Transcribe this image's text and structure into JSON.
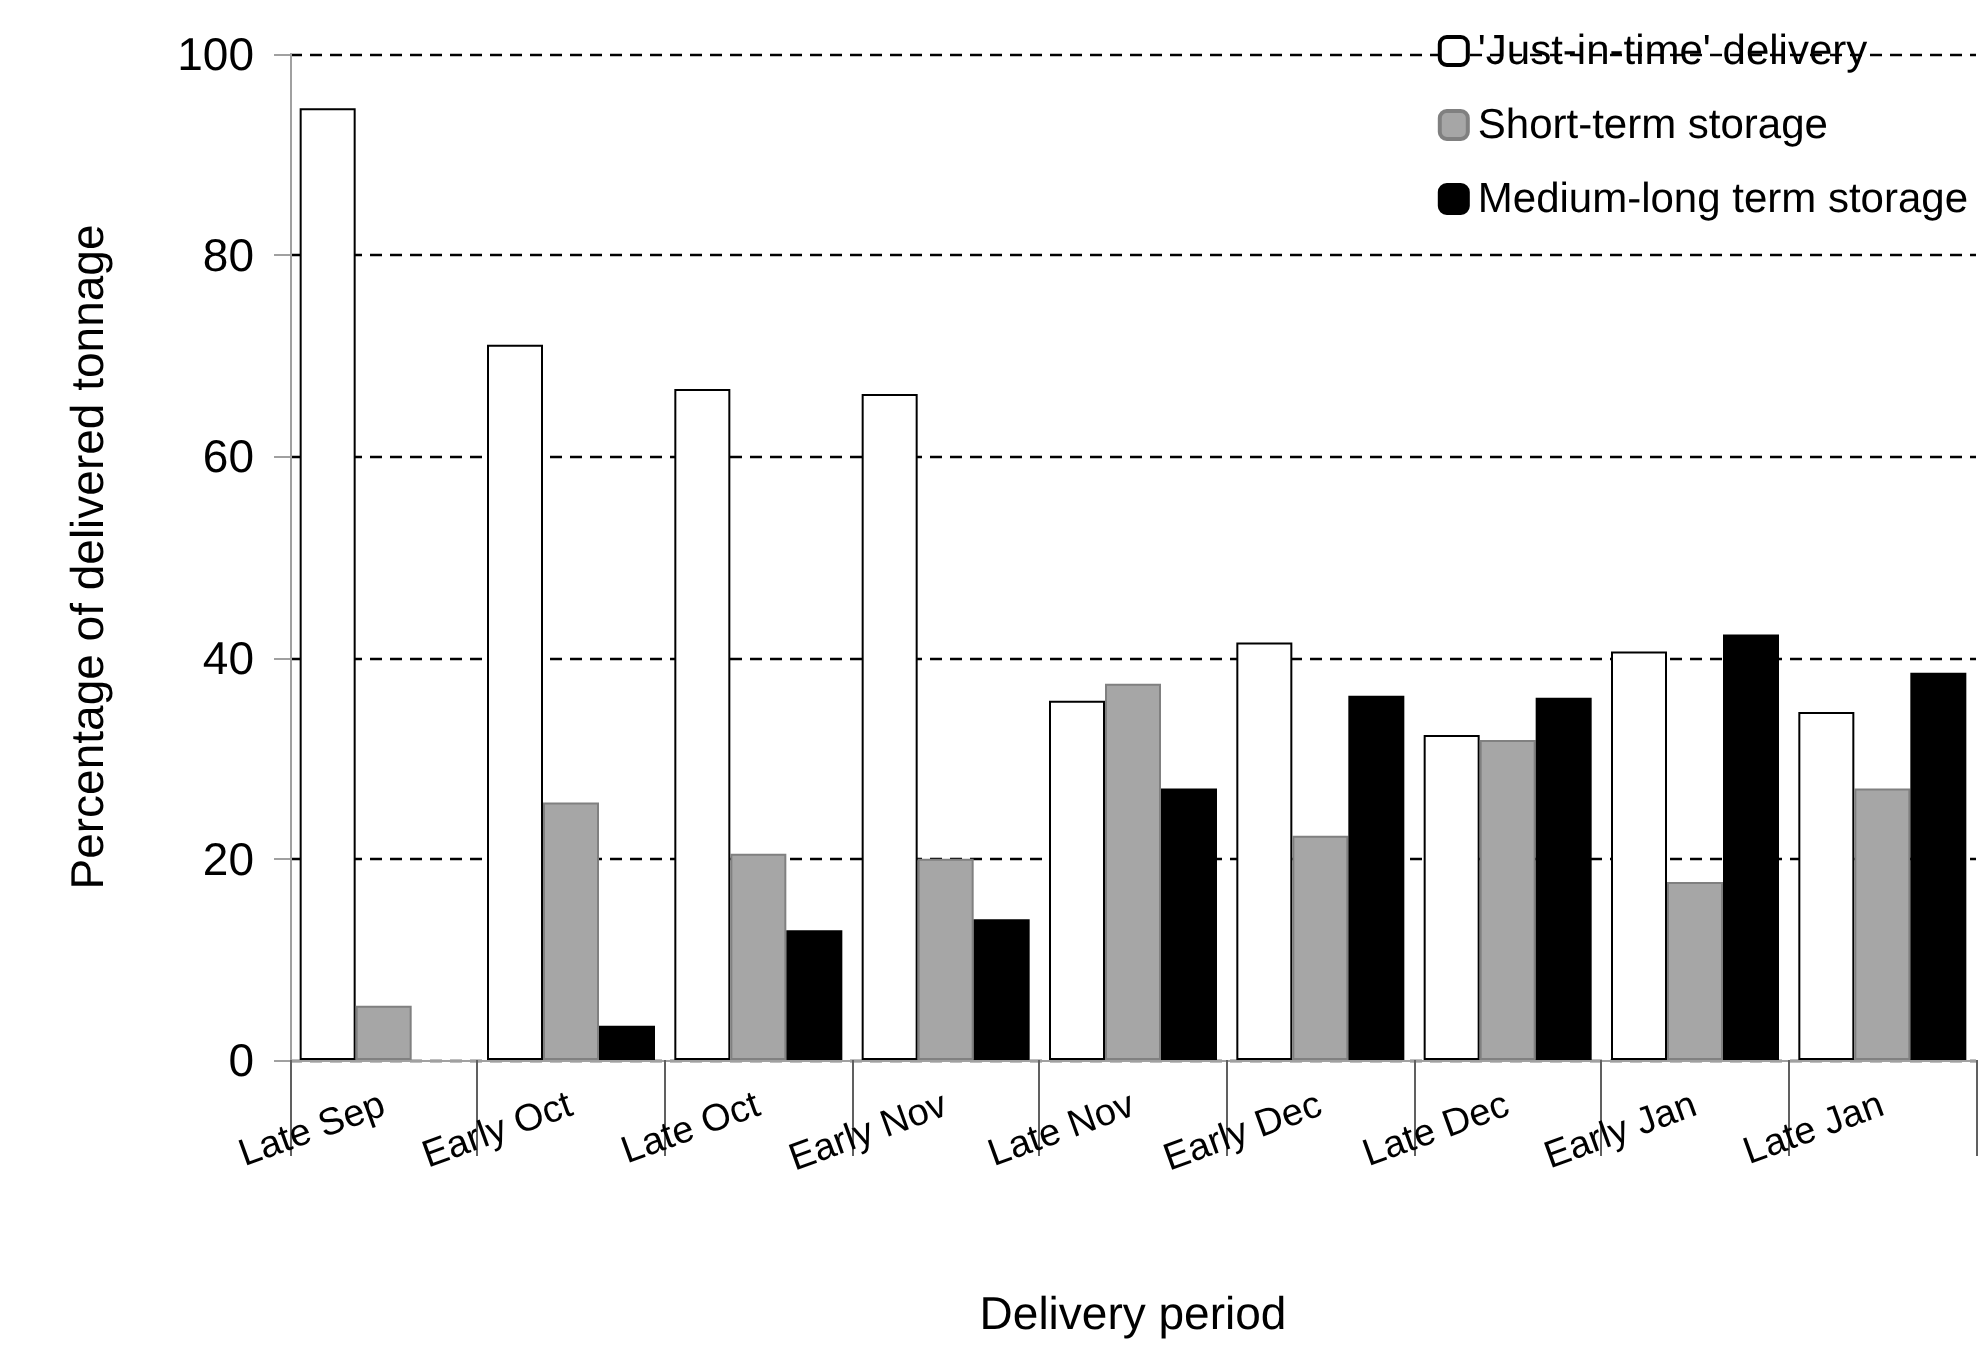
{
  "chart_data": {
    "type": "bar",
    "xlabel": "Delivery period",
    "ylabel": "Percentage of delivered tonnage",
    "categories": [
      "Late Sep",
      "Early Oct",
      "Late Oct",
      "Early Nov",
      "Late Nov",
      "Early Dec",
      "Late Dec",
      "Early Jan",
      "Late Jan"
    ],
    "series": [
      {
        "name": "'Just-in-time' delivery",
        "color": "#ffffff",
        "values": [
          94.6,
          71.1,
          66.7,
          66.2,
          35.7,
          41.5,
          32.3,
          40.6,
          34.6
        ]
      },
      {
        "name": "Short-term storage",
        "color": "#a6a6a6",
        "values": [
          5.4,
          25.6,
          20.5,
          20.0,
          37.4,
          22.3,
          31.8,
          17.7,
          27.0
        ]
      },
      {
        "name": "Medium-long term storage",
        "color": "#000000",
        "values": [
          null,
          3.4,
          12.9,
          14.0,
          27.0,
          36.2,
          36.0,
          42.3,
          38.5
        ]
      }
    ],
    "ylim": [
      0,
      100
    ],
    "yticks": [
      0,
      20,
      40,
      60,
      80,
      100
    ],
    "grid": "y",
    "legend": "top right"
  }
}
